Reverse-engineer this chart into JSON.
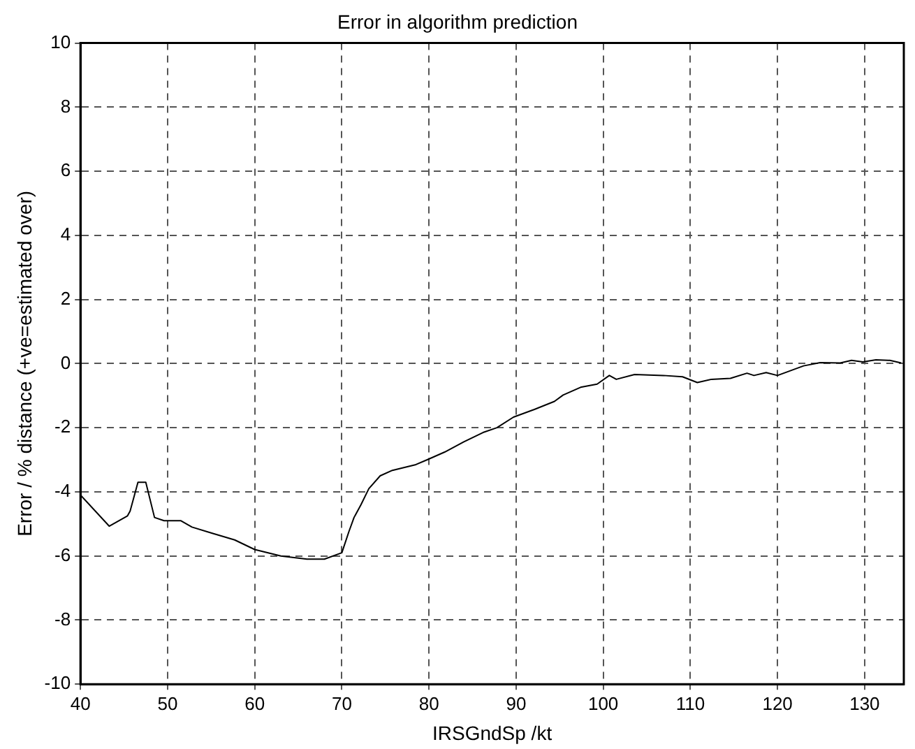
{
  "chart_data": {
    "type": "line",
    "title": "Error in algorithm prediction",
    "xlabel": "IRSGndSp /kt",
    "ylabel": "Error / % distance (+ve=estimated over)",
    "series": [
      {
        "color": "#000000",
        "x": [
          40,
          43.3,
          45.4,
          45.7,
          46.6,
          47.5,
          48.5,
          49.6,
          51.5,
          52.8,
          55.2,
          57.7,
          60,
          63,
          66,
          68,
          70,
          70.8,
          71.4,
          72.2,
          73.1,
          74.4,
          75.8,
          78.5,
          79.8,
          81.8,
          84,
          86.2,
          87.8,
          89.7,
          92.1,
          94.4,
          95.4,
          97.4,
          99.3,
          100.7,
          101.5,
          103.6,
          106.9,
          109.1,
          110.8,
          112.4,
          114.6,
          116.5,
          117.3,
          118.7,
          120,
          123,
          124.9,
          127.2,
          128.5,
          129.8,
          131.3,
          132.9,
          134.2
        ],
        "values": [
          -4.1,
          -5.07,
          -4.75,
          -4.6,
          -3.7,
          -3.7,
          -4.8,
          -4.9,
          -4.9,
          -5.1,
          -5.3,
          -5.5,
          -5.8,
          -6.0,
          -6.1,
          -6.1,
          -5.9,
          -5.25,
          -4.8,
          -4.4,
          -3.9,
          -3.5,
          -3.33,
          -3.15,
          -3.0,
          -2.76,
          -2.44,
          -2.15,
          -2.0,
          -1.67,
          -1.43,
          -1.18,
          -0.98,
          -0.74,
          -0.64,
          -0.37,
          -0.49,
          -0.34,
          -0.37,
          -0.41,
          -0.59,
          -0.49,
          -0.46,
          -0.3,
          -0.37,
          -0.28,
          -0.37,
          -0.07,
          0.03,
          0.02,
          0.1,
          0.05,
          0.12,
          0.1,
          0.02
        ]
      }
    ],
    "xlim": [
      40,
      134.5
    ],
    "ylim": [
      -10,
      10
    ],
    "xticks": [
      40,
      50,
      60,
      70,
      80,
      90,
      100,
      110,
      120,
      130
    ],
    "yticks": [
      -10,
      -8,
      -6,
      -4,
      -2,
      0,
      2,
      4,
      6,
      8,
      10
    ],
    "grid": true,
    "legend": false,
    "marker": "none",
    "line_style": "solid"
  }
}
